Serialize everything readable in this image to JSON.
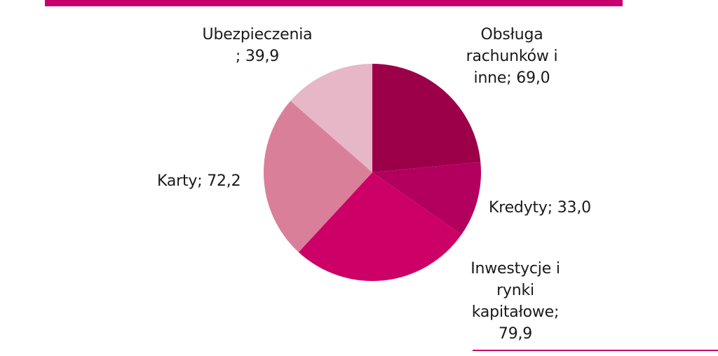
{
  "colors": {
    "accent": "#c8006e",
    "slices": [
      "#9b0048",
      "#b3005e",
      "#cc0066",
      "#da7f9a",
      "#e6b7c6"
    ]
  },
  "chart_data": {
    "type": "pie",
    "title": "",
    "start": "12 o'clock, clockwise",
    "slices": [
      {
        "label": "Obsługa rachunków i inne",
        "value": 69.0,
        "display": "Obsługa\nrachunków i\ninne; 69,0",
        "color": "#9b0048"
      },
      {
        "label": "Kredyty",
        "value": 33.0,
        "display": "Kredyty; 33,0",
        "color": "#b3005e"
      },
      {
        "label": "Inwestycje i rynki kapitałowe",
        "value": 79.9,
        "display": "Inwestycje i\nrynki\nkapitałowe;\n79,9",
        "color": "#cc0066"
      },
      {
        "label": "Karty",
        "value": 72.2,
        "display": "Karty; 72,2",
        "color": "#da7f9a"
      },
      {
        "label": "Ubezpieczenia",
        "value": 39.9,
        "display": "Ubezpieczenia\n; 39,9",
        "color": "#e6b7c6"
      }
    ]
  }
}
